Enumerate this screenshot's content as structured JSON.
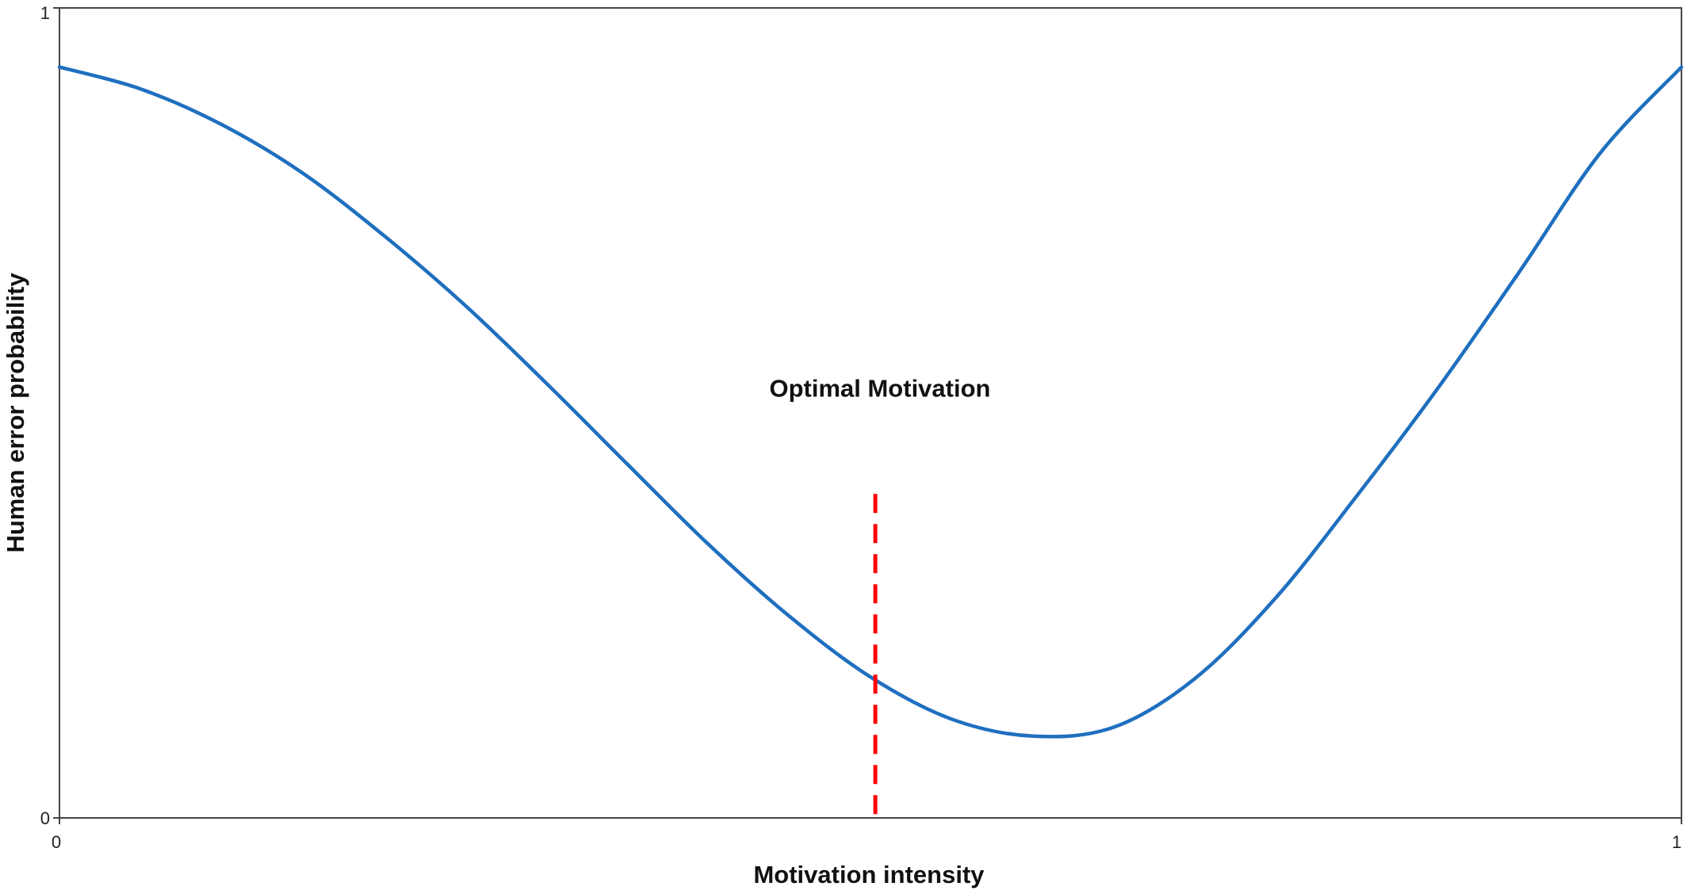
{
  "chart_data": {
    "type": "line",
    "title": "",
    "xlabel": "Motivation intensity",
    "ylabel": "Human error probability",
    "xlim": [
      0,
      1
    ],
    "ylim": [
      0,
      1
    ],
    "x_ticks": [
      "0",
      "1"
    ],
    "y_ticks": [
      "0",
      "1"
    ],
    "grid": false,
    "legend": "none",
    "series": [
      {
        "color": "#1f6fbf",
        "x": [
          0,
          0.05,
          0.1,
          0.15,
          0.2,
          0.25,
          0.3,
          0.35,
          0.4,
          0.45,
          0.5,
          0.55,
          0.6,
          0.65,
          0.7,
          0.75,
          0.8,
          0.85,
          0.9,
          0.95,
          1
        ],
        "y": [
          0.927,
          0.9,
          0.856,
          0.796,
          0.719,
          0.633,
          0.537,
          0.437,
          0.338,
          0.249,
          0.174,
          0.122,
          0.101,
          0.112,
          0.172,
          0.272,
          0.398,
          0.531,
          0.674,
          0.821,
          0.927
        ]
      }
    ],
    "reference_line": {
      "x": 0.503,
      "y_range": [
        0,
        0.4
      ],
      "color": "#ff0000",
      "style": "dashed"
    },
    "annotations": [
      {
        "text": "Optimal Motivation",
        "x": 0.467,
        "y": 0.52
      }
    ]
  }
}
